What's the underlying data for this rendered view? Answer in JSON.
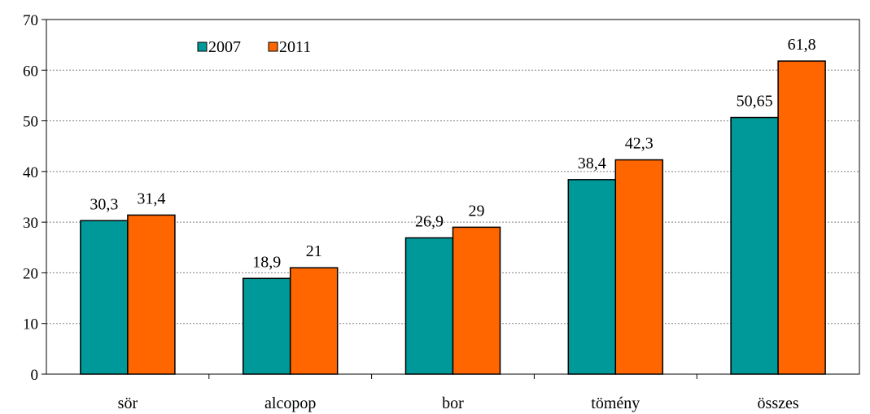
{
  "chart_data": {
    "type": "bar",
    "title": "",
    "xlabel": "",
    "ylabel": "",
    "categories": [
      "sör",
      "alcopop",
      "bor",
      "tömény",
      "összes"
    ],
    "series": [
      {
        "name": "2007",
        "color": "#009999",
        "values": [
          30.3,
          18.9,
          26.9,
          38.4,
          50.65
        ],
        "labels": [
          "30,3",
          "18,9",
          "26,9",
          "38,4",
          "50,65"
        ]
      },
      {
        "name": "2011",
        "color": "#FF6600",
        "values": [
          31.4,
          21,
          29,
          42.3,
          61.8
        ],
        "labels": [
          "31,4",
          "21",
          "29",
          "42,3",
          "61,8"
        ]
      }
    ],
    "ylim": [
      0,
      70
    ],
    "yticks": [
      0,
      10,
      20,
      30,
      40,
      50,
      60,
      70
    ],
    "ytick_labels": [
      "0",
      "10",
      "20",
      "30",
      "40",
      "50",
      "60",
      "70"
    ],
    "grid": true,
    "legend_position": "top-left"
  }
}
